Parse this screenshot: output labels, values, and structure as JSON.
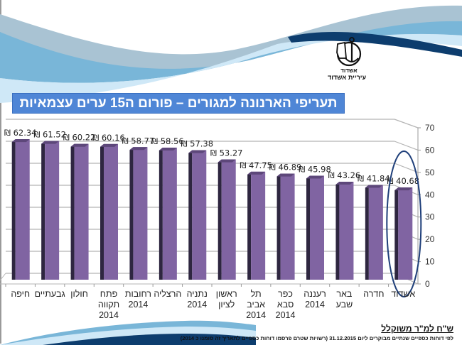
{
  "header": {
    "logo_caption": "עיריית אשדוד",
    "logo_emblem_text": "אשדוד"
  },
  "title": "תעריפי הארנונה למגורים – פורום ה15 ערים עצמאיות",
  "colors": {
    "title_bg": "#4f86d6",
    "bar_front": "#8064a2",
    "bar_side": "#2e2640",
    "bar_top": "#5d477a",
    "highlight_ellipse": "#1f3f7a",
    "swoosh_dark": "#0d3d6e",
    "swoosh_mid": "#6fb2d6",
    "swoosh_light": "#c9e6f6"
  },
  "chart_data": {
    "type": "bar",
    "style": "3d-column",
    "direction": "rtl",
    "title": "תעריפי הארנונה למגורים – פורום ה15 ערים עצמאיות",
    "ylabel": "",
    "xlabel": "",
    "ylim": [
      0,
      70
    ],
    "yticks": [
      "0",
      "10",
      "20",
      "30",
      "40",
      "50",
      "60",
      "70"
    ],
    "grid": true,
    "axis_side": "right",
    "value_prefix": "₪ ",
    "categories": [
      "אשדוד",
      "חדרה",
      "באר שבע",
      "רעננה 2014",
      "כפר סבא 2014",
      "תל אביב 2014",
      "ראשון לציון",
      "נתניה 2014",
      "הרצליה",
      "רחובות 2014",
      "פתח תקווה 2014",
      "חולון",
      "גבעתיים",
      "חיפה"
    ],
    "category_lines": [
      [
        "אשדוד"
      ],
      [
        "חדרה"
      ],
      [
        "באר",
        "שבע"
      ],
      [
        "רעננה",
        "2014"
      ],
      [
        "כפר",
        "סבא",
        "2014"
      ],
      [
        "תל אביב",
        "2014"
      ],
      [
        "ראשון",
        "לציון"
      ],
      [
        "נתניה",
        "2014"
      ],
      [
        "הרצליה"
      ],
      [
        "רחובות",
        "2014"
      ],
      [
        "פתח",
        "תקווה",
        "2014"
      ],
      [
        "חולון"
      ],
      [
        "גבעתיים"
      ],
      [
        "חיפה"
      ]
    ],
    "values": [
      40.68,
      41.84,
      43.26,
      45.98,
      46.89,
      47.75,
      53.27,
      57.38,
      58.56,
      58.77,
      60.16,
      60.22,
      61.52,
      62.34
    ],
    "value_labels": [
      "₪ 40.68",
      "₪ 41.84",
      "₪ 43.26",
      "₪ 45.98",
      "₪ 46.89",
      "₪ 47.75",
      "₪ 53.27",
      "₪ 57.38",
      "₪ 58.56",
      "₪ 58.77",
      "₪ 60.16",
      "₪ 60.22",
      "₪ 61.52",
      "₪ 62.34"
    ],
    "highlighted_category": "אשדוד"
  },
  "footnote": {
    "unit": "ש\"ח למ\"ר משוקלל",
    "source": "לפי דוחות כספיים שנתיים מבוקרים ליום 31.12.2015 (רשויות שטרם פרסמו דוחות כספיים לתאריך זה סומנו כ 2014)"
  }
}
